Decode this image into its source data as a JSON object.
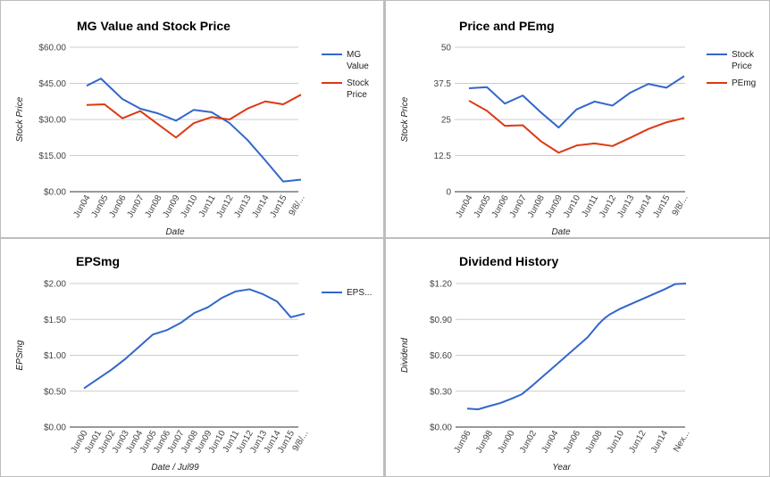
{
  "chart_data": [
    {
      "id": "mg",
      "type": "line",
      "title": "MG Value and Stock Price",
      "xlabel": "Date",
      "ylabel": "Stock Price",
      "ylim": [
        0,
        60
      ],
      "yticks": [
        0,
        15,
        30,
        45,
        60
      ],
      "ytick_labels": [
        "$0.00",
        "$15.00",
        "$30.00",
        "$45.00",
        "$60.00"
      ],
      "categories": [
        "Jun04",
        "Jun05",
        "Jun06",
        "Jun07",
        "Jun08",
        "Jun09",
        "Jun10",
        "Jun11",
        "Jun12",
        "Jun13",
        "Jun14",
        "Jun15",
        "9/8/..."
      ],
      "x": [
        0,
        1,
        2,
        3,
        4,
        5,
        6,
        7,
        8,
        9,
        10,
        11,
        12
      ],
      "grid": true,
      "legend": "right",
      "series": [
        {
          "name": "MG Value",
          "color": "#3366cc",
          "x": [
            0,
            0.8,
            2,
            3,
            4,
            5,
            6,
            7,
            8,
            9,
            10,
            11,
            12
          ],
          "values": [
            44,
            47,
            38.5,
            34.5,
            32.5,
            29.5,
            34,
            33,
            28.5,
            21.5,
            13,
            4.2,
            5
          ]
        },
        {
          "name": "Stock Price",
          "color": "#dc3912",
          "x": [
            0,
            1,
            2,
            3,
            4,
            5,
            6,
            7,
            8,
            9,
            10,
            11,
            12
          ],
          "values": [
            36,
            36.3,
            30.5,
            33.5,
            28,
            22.5,
            28.5,
            31,
            30,
            34.5,
            37.5,
            36.3,
            40.3
          ]
        }
      ]
    },
    {
      "id": "pe",
      "type": "line",
      "title": "Price and PEmg",
      "xlabel": "Date",
      "ylabel": "Stock Price",
      "ylim": [
        0,
        50
      ],
      "yticks": [
        0,
        12.5,
        25,
        37.5,
        50
      ],
      "ytick_labels": [
        "0",
        "12.5",
        "25",
        "37.5",
        "50"
      ],
      "categories": [
        "Jun04",
        "Jun05",
        "Jun06",
        "Jun07",
        "Jun08",
        "Jun09",
        "Jun10",
        "Jun11",
        "Jun12",
        "Jun13",
        "Jun14",
        "Jun15",
        "9/8/..."
      ],
      "x": [
        0,
        1,
        2,
        3,
        4,
        5,
        6,
        7,
        8,
        9,
        10,
        11,
        12
      ],
      "grid": true,
      "legend": "right",
      "series": [
        {
          "name": "Stock Price",
          "color": "#3366cc",
          "values": [
            35.8,
            36.2,
            30.5,
            33.3,
            27.5,
            22.2,
            28.5,
            31.2,
            29.8,
            34.3,
            37.3,
            36.0,
            40.0
          ]
        },
        {
          "name": "PEmg",
          "color": "#dc3912",
          "values": [
            31.5,
            28.0,
            22.8,
            23.0,
            17.5,
            13.5,
            16.0,
            16.7,
            15.8,
            18.7,
            21.7,
            24.0,
            25.5
          ]
        }
      ]
    },
    {
      "id": "eps",
      "type": "line",
      "title": "EPSmg",
      "xlabel": "Date / Jul99",
      "ylabel": "EPSmg",
      "ylim": [
        0,
        2
      ],
      "yticks": [
        0,
        0.5,
        1,
        1.5,
        2
      ],
      "ytick_labels": [
        "$0.00",
        "$0.50",
        "$1.00",
        "$1.50",
        "$2.00"
      ],
      "categories": [
        "Jun00",
        "Jun01",
        "Jun02",
        "Jun03",
        "Jun04",
        "Jun05",
        "Jun06",
        "Jun07",
        "Jun08",
        "Jun09",
        "Jun10",
        "Jun11",
        "Jun12",
        "Jun13",
        "Jun14",
        "Jun15",
        "9/8/..."
      ],
      "x": [
        0,
        1,
        2,
        3,
        4,
        5,
        6,
        7,
        8,
        9,
        10,
        11,
        12,
        13,
        14,
        15,
        16
      ],
      "grid": true,
      "legend": "right",
      "series": [
        {
          "name": "EPS...",
          "color": "#3366cc",
          "values": [
            0.54,
            0.67,
            0.8,
            0.95,
            1.12,
            1.29,
            1.35,
            1.45,
            1.59,
            1.67,
            1.8,
            1.89,
            1.92,
            1.85,
            1.75,
            1.53,
            1.58
          ]
        }
      ]
    },
    {
      "id": "div",
      "type": "line",
      "title": "Dividend History",
      "xlabel": "Year",
      "ylabel": "Dividend",
      "ylim": [
        0,
        1.2
      ],
      "yticks": [
        0,
        0.3,
        0.6,
        0.9,
        1.2
      ],
      "ytick_labels": [
        "$0.00",
        "$0.30",
        "$0.60",
        "$0.90",
        "$1.20"
      ],
      "categories": [
        "Jun96",
        "Jun98",
        "Jun00",
        "Jun02",
        "Jun04",
        "Jun06",
        "Jun08",
        "Jun10",
        "Jun12",
        "Jun14",
        "Nex..."
      ],
      "x": [
        0,
        2,
        4,
        6,
        8,
        10,
        12,
        14,
        16,
        18,
        20
      ],
      "grid": true,
      "legend": "none",
      "series": [
        {
          "name": "Dividend",
          "color": "#3366cc",
          "x": [
            0,
            1,
            2,
            3,
            4,
            5,
            6,
            7,
            8,
            9,
            10,
            11,
            12,
            12.5,
            13,
            14,
            15,
            16,
            17,
            18,
            19,
            20
          ],
          "values": [
            0.155,
            0.148,
            0.175,
            0.2,
            0.235,
            0.275,
            0.35,
            0.43,
            0.51,
            0.59,
            0.67,
            0.75,
            0.86,
            0.905,
            0.94,
            0.99,
            1.03,
            1.07,
            1.11,
            1.15,
            1.195,
            1.2
          ]
        }
      ]
    }
  ]
}
